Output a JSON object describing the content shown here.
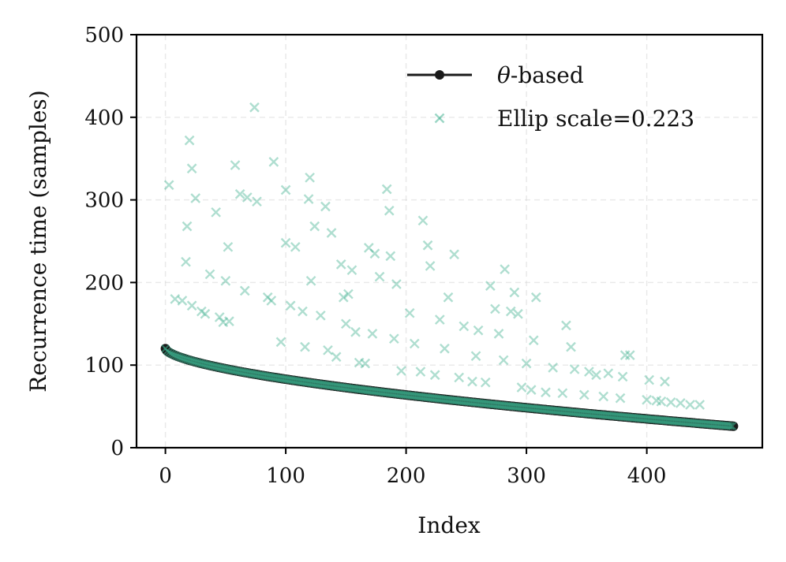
{
  "chart_data": {
    "type": "scatter",
    "xlabel": "Index",
    "ylabel": "Recurrence time (samples)",
    "xlim": [
      -24,
      496
    ],
    "ylim": [
      0,
      500
    ],
    "xticks": [
      0,
      100,
      200,
      300,
      400
    ],
    "yticks": [
      0,
      100,
      200,
      300,
      400,
      500
    ],
    "grid": true,
    "legend_position": "top-right",
    "series": [
      {
        "name": "θ-based",
        "legend_label": "-based",
        "legend_symbol": "θ",
        "marker": "circle",
        "color": "#1a1a1a",
        "curve": {
          "formula": "y = 120 - 94*(x/472)^0.6",
          "x_start": 0,
          "x_end": 472
        },
        "points": [
          [
            0,
            120
          ],
          [
            25,
            103
          ],
          [
            50,
            91
          ],
          [
            75,
            82
          ],
          [
            100,
            74
          ],
          [
            150,
            61
          ],
          [
            200,
            51
          ],
          [
            250,
            43
          ],
          [
            300,
            38
          ],
          [
            350,
            33
          ],
          [
            400,
            30
          ],
          [
            450,
            28
          ],
          [
            472,
            26
          ]
        ]
      },
      {
        "name": "Ellip scale=0.223",
        "marker": "x",
        "color": "#3aae8c",
        "points": [
          [
            3,
            318
          ],
          [
            8,
            180
          ],
          [
            14,
            178
          ],
          [
            18,
            268
          ],
          [
            20,
            372
          ],
          [
            17,
            225
          ],
          [
            22,
            338
          ],
          [
            25,
            302
          ],
          [
            22,
            172
          ],
          [
            30,
            165
          ],
          [
            33,
            162
          ],
          [
            37,
            210
          ],
          [
            42,
            285
          ],
          [
            45,
            158
          ],
          [
            48,
            152
          ],
          [
            52,
            243
          ],
          [
            53,
            153
          ],
          [
            50,
            202
          ],
          [
            58,
            342
          ],
          [
            62,
            307
          ],
          [
            68,
            303
          ],
          [
            66,
            190
          ],
          [
            74,
            412
          ],
          [
            76,
            298
          ],
          [
            85,
            182
          ],
          [
            90,
            346
          ],
          [
            88,
            178
          ],
          [
            96,
            128
          ],
          [
            100,
            312
          ],
          [
            100,
            248
          ],
          [
            104,
            172
          ],
          [
            108,
            243
          ],
          [
            114,
            165
          ],
          [
            116,
            122
          ],
          [
            119,
            301
          ],
          [
            120,
            327
          ],
          [
            121,
            202
          ],
          [
            124,
            268
          ],
          [
            129,
            160
          ],
          [
            133,
            292
          ],
          [
            135,
            118
          ],
          [
            138,
            260
          ],
          [
            142,
            110
          ],
          [
            146,
            222
          ],
          [
            148,
            182
          ],
          [
            150,
            150
          ],
          [
            152,
            186
          ],
          [
            155,
            215
          ],
          [
            158,
            140
          ],
          [
            161,
            103
          ],
          [
            166,
            102
          ],
          [
            169,
            242
          ],
          [
            172,
            138
          ],
          [
            174,
            235
          ],
          [
            178,
            207
          ],
          [
            184,
            313
          ],
          [
            186,
            287
          ],
          [
            187,
            232
          ],
          [
            190,
            132
          ],
          [
            192,
            198
          ],
          [
            196,
            93
          ],
          [
            203,
            163
          ],
          [
            207,
            126
          ],
          [
            212,
            92
          ],
          [
            214,
            275
          ],
          [
            218,
            245
          ],
          [
            220,
            220
          ],
          [
            224,
            88
          ],
          [
            228,
            155
          ],
          [
            232,
            120
          ],
          [
            235,
            182
          ],
          [
            240,
            234
          ],
          [
            244,
            85
          ],
          [
            248,
            147
          ],
          [
            255,
            80
          ],
          [
            258,
            111
          ],
          [
            260,
            142
          ],
          [
            266,
            79
          ],
          [
            270,
            196
          ],
          [
            274,
            168
          ],
          [
            277,
            138
          ],
          [
            281,
            106
          ],
          [
            282,
            216
          ],
          [
            287,
            165
          ],
          [
            290,
            188
          ],
          [
            293,
            162
          ],
          [
            296,
            73
          ],
          [
            300,
            102
          ],
          [
            304,
            70
          ],
          [
            306,
            130
          ],
          [
            308,
            182
          ],
          [
            316,
            67
          ],
          [
            322,
            97
          ],
          [
            330,
            66
          ],
          [
            333,
            148
          ],
          [
            337,
            122
          ],
          [
            340,
            95
          ],
          [
            348,
            64
          ],
          [
            352,
            92
          ],
          [
            358,
            88
          ],
          [
            364,
            62
          ],
          [
            368,
            90
          ],
          [
            378,
            60
          ],
          [
            380,
            86
          ],
          [
            382,
            112
          ],
          [
            386,
            112
          ],
          [
            400,
            58
          ],
          [
            402,
            82
          ],
          [
            408,
            57
          ],
          [
            412,
            56
          ],
          [
            415,
            80
          ],
          [
            420,
            55
          ],
          [
            428,
            54
          ],
          [
            436,
            52
          ],
          [
            444,
            52
          ]
        ]
      }
    ]
  }
}
